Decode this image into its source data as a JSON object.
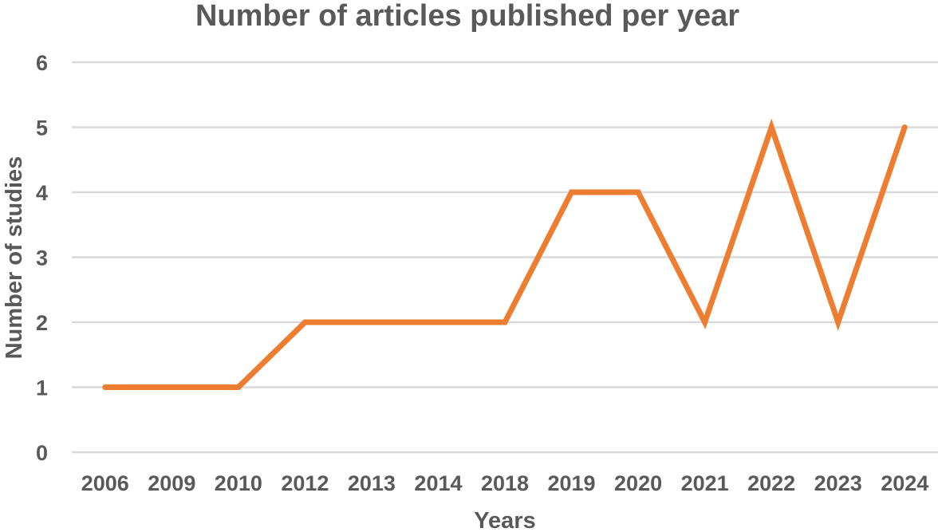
{
  "chart_data": {
    "type": "line",
    "title": "Number of articles published per year",
    "xlabel": "Years",
    "ylabel": "Number of studies",
    "categories": [
      "2006",
      "2009",
      "2010",
      "2012",
      "2013",
      "2014",
      "2018",
      "2019",
      "2020",
      "2021",
      "2022",
      "2023",
      "2024"
    ],
    "series": [
      {
        "values": [
          1,
          1,
          1,
          2,
          2,
          2,
          2,
          4,
          4,
          2,
          5,
          2,
          5
        ],
        "color": "#ED7D31"
      }
    ],
    "ylim": [
      0,
      6
    ],
    "yticks": [
      "0",
      "1",
      "2",
      "3",
      "4",
      "5",
      "6"
    ],
    "grid": true,
    "legend": "none"
  }
}
